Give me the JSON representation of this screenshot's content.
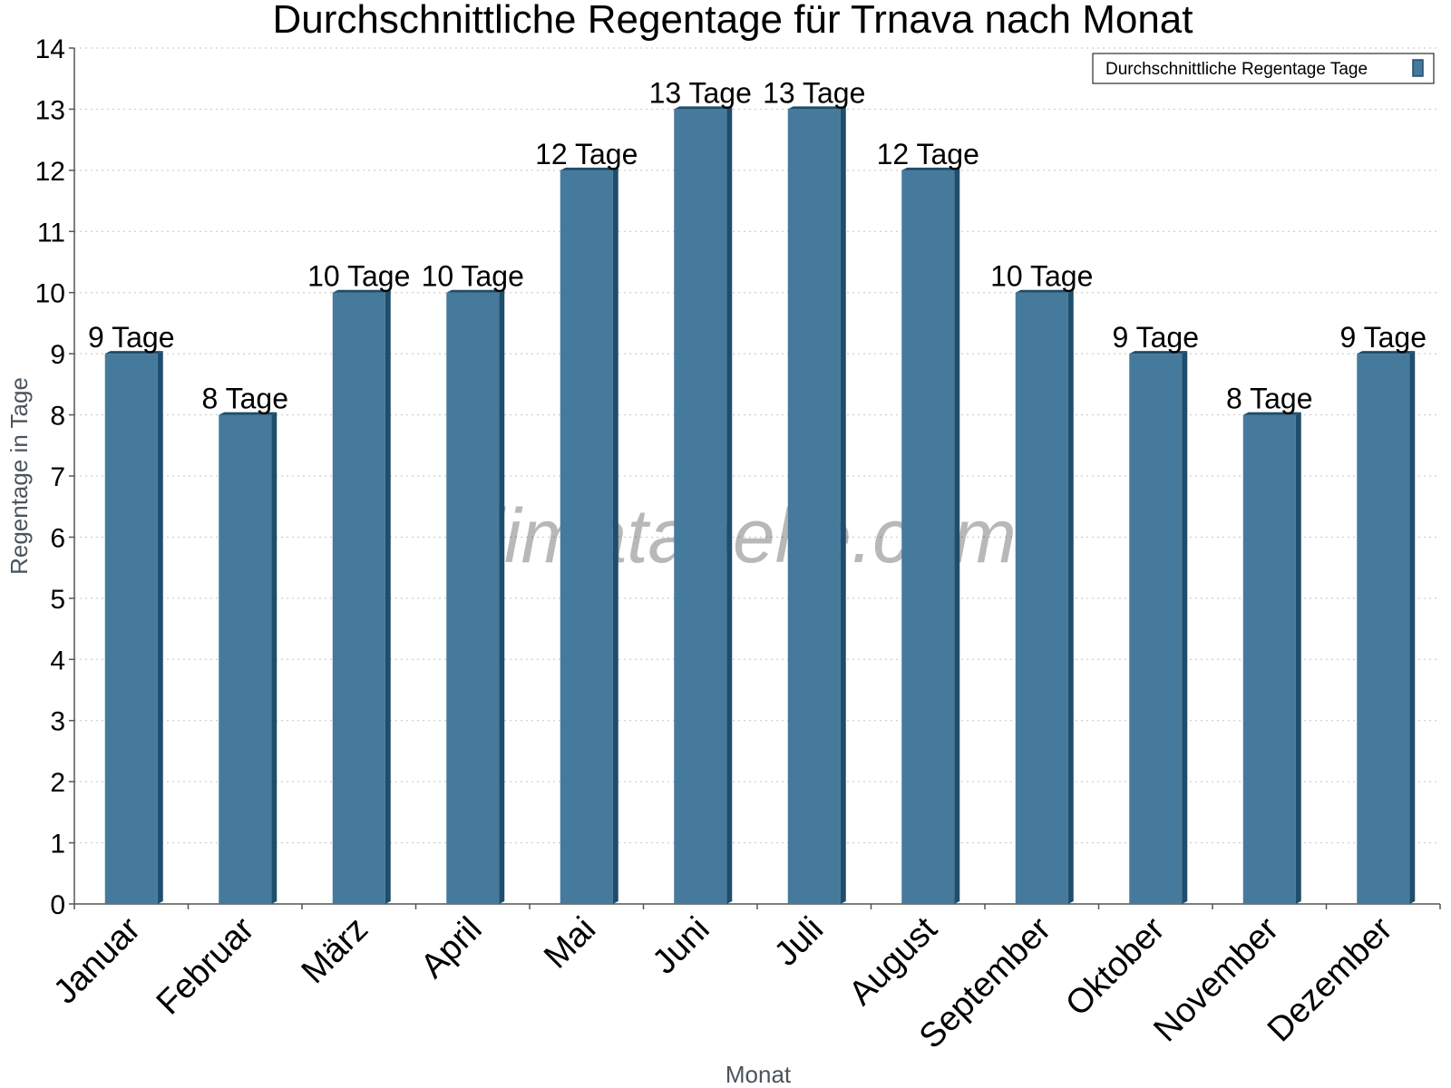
{
  "chart_data": {
    "type": "bar",
    "title": "Durchschnittliche Regentage für Trnava nach Monat",
    "xlabel": "Monat",
    "ylabel": "Regentage in Tage",
    "ylim": [
      0,
      14
    ],
    "yticks": [
      0,
      1,
      2,
      3,
      4,
      5,
      6,
      7,
      8,
      9,
      10,
      11,
      12,
      13,
      14
    ],
    "grid": true,
    "legend_position": "top-right",
    "categories": [
      "Januar",
      "Februar",
      "März",
      "April",
      "Mai",
      "Juni",
      "Juli",
      "August",
      "September",
      "Oktober",
      "November",
      "Dezember"
    ],
    "series": [
      {
        "name": "Durchschnittliche Regentage Tage",
        "values": [
          9,
          8,
          10,
          10,
          12,
          13,
          13,
          12,
          10,
          9,
          8,
          9
        ],
        "labels": [
          "9 Tage",
          "8 Tage",
          "10 Tage",
          "10 Tage",
          "12 Tage",
          "13 Tage",
          "13 Tage",
          "12 Tage",
          "10 Tage",
          "9 Tage",
          "8 Tage",
          "9 Tage"
        ],
        "color": "#467a9c",
        "side_color": "#1f4d6c"
      }
    ],
    "watermark": "klimatabelle.com"
  }
}
